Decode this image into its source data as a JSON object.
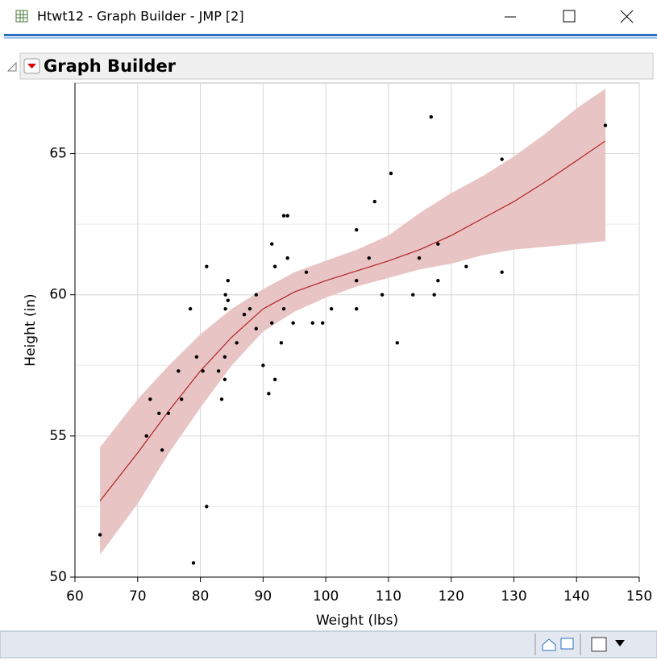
{
  "window": {
    "title": "Htwt12 - Graph Builder - JMP [2]"
  },
  "panel": {
    "title": "Graph Builder"
  },
  "chart_data": {
    "type": "scatter",
    "xlabel": "Weight (lbs)",
    "ylabel": "Height (in)",
    "xlim": [
      60,
      150
    ],
    "ylim": [
      50,
      67.5
    ],
    "xticks": [
      60,
      70,
      80,
      90,
      100,
      110,
      120,
      130,
      140,
      150
    ],
    "yticks": [
      50,
      55,
      60,
      65
    ],
    "yminor": [
      52.5,
      57.5,
      62.5
    ],
    "grid": true,
    "series": [
      {
        "type": "scatter",
        "color": "#000000",
        "x": [
          64,
          71.4,
          72,
          73.4,
          73.9,
          74.9,
          76.5,
          77,
          78.4,
          78.9,
          79.4,
          80.4,
          81,
          81,
          82.9,
          83.4,
          83.9,
          83.9,
          84,
          84,
          84.4,
          84.4,
          85.8,
          87,
          87.9,
          88.9,
          88.9,
          90,
          90.9,
          91.4,
          91.4,
          91.9,
          91.9,
          92.9,
          93.3,
          93.3,
          93.9,
          93.9,
          94.8,
          96.9,
          97.9,
          99.5,
          100.9,
          104.9,
          104.9,
          104.9,
          106.9,
          107.8,
          109,
          110.4,
          111.4,
          113.9,
          114.9,
          116.8,
          117.3,
          117.9,
          117.9,
          122.4,
          128.1,
          128.1,
          144.6
        ],
        "values": [
          51.5,
          55,
          56.3,
          55.8,
          54.5,
          55.8,
          57.3,
          56.3,
          59.5,
          50.5,
          57.8,
          57.3,
          61,
          52.5,
          57.3,
          56.3,
          57.8,
          57,
          60,
          59.5,
          60.5,
          59.8,
          58.3,
          59.3,
          59.5,
          60,
          58.8,
          57.5,
          56.5,
          61.8,
          59,
          61,
          57,
          58.3,
          59.5,
          62.8,
          62.8,
          61.3,
          59,
          60.8,
          59,
          59,
          59.5,
          62.3,
          60.5,
          59.5,
          61.3,
          63.3,
          60,
          64.3,
          58.3,
          60,
          61.3,
          66.3,
          60,
          61.8,
          60.5,
          61,
          64.8,
          60.8,
          66
        ]
      },
      {
        "type": "line",
        "color": "#b22222",
        "band_color": "#e8c4c4",
        "x": [
          64,
          70,
          75,
          80,
          85,
          90,
          95,
          100,
          105,
          110,
          115,
          120,
          125,
          130,
          135,
          140,
          144.6
        ],
        "values": [
          52.7,
          54.4,
          55.9,
          57.3,
          58.5,
          59.5,
          60.1,
          60.5,
          60.85,
          61.2,
          61.6,
          62.1,
          62.7,
          63.3,
          64,
          64.75,
          65.45
        ],
        "lower": [
          50.8,
          52.6,
          54.4,
          56.0,
          57.5,
          58.7,
          59.4,
          59.9,
          60.3,
          60.6,
          60.9,
          61.1,
          61.4,
          61.6,
          61.7,
          61.8,
          61.9
        ],
        "upper": [
          54.6,
          56.3,
          57.5,
          58.6,
          59.5,
          60.2,
          60.8,
          61.2,
          61.6,
          62.1,
          62.9,
          63.6,
          64.2,
          64.9,
          65.7,
          66.6,
          67.3
        ]
      }
    ]
  }
}
